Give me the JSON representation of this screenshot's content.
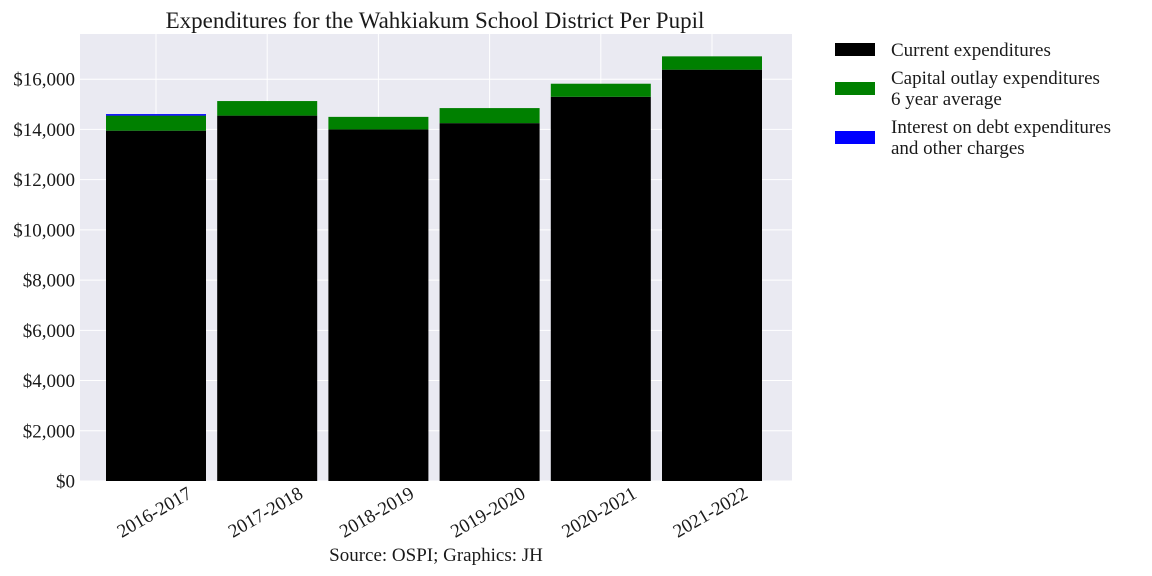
{
  "chart_data": {
    "type": "bar",
    "stacked": true,
    "title": "Expenditures for the Wahkiakum School District Per Pupil",
    "xlabel": "",
    "ylabel": "",
    "source_note": "Source: OSPI; Graphics: JH",
    "categories": [
      "2016-2017",
      "2017-2018",
      "2018-2019",
      "2019-2020",
      "2020-2021",
      "2021-2022"
    ],
    "ylim": [
      0,
      17800
    ],
    "y_ticks": [
      0,
      2000,
      4000,
      6000,
      8000,
      10000,
      12000,
      14000,
      16000
    ],
    "y_tick_labels": [
      "$0",
      "$2,000",
      "$4,000",
      "$6,000",
      "$8,000",
      "$10,000",
      "$12,000",
      "$14,000",
      "$16,000"
    ],
    "grid": true,
    "legend_position": "outside-right-top",
    "series": [
      {
        "name": "Current expenditures",
        "color": "#000000",
        "values": [
          13950,
          14550,
          14000,
          14250,
          15300,
          16380
        ]
      },
      {
        "name": "Capital outlay expenditures\n6 year average",
        "color": "#008000",
        "values": [
          600,
          580,
          500,
          600,
          520,
          530
        ]
      },
      {
        "name": "Interest on debt expenditures\nand other charges",
        "color": "#0000ff",
        "values": [
          60,
          0,
          0,
          0,
          0,
          0
        ]
      }
    ],
    "plot_background": "#eaeaf2",
    "grid_color": "#ffffff"
  }
}
